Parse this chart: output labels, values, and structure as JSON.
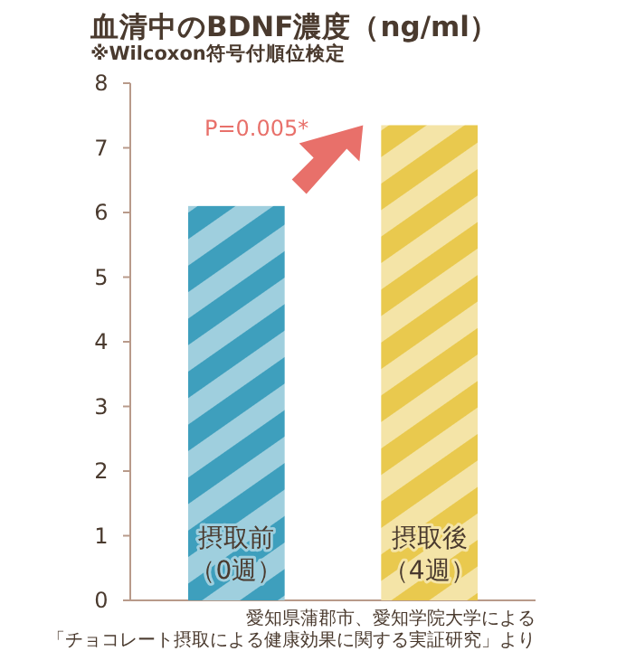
{
  "chart_data": {
    "type": "bar",
    "title": "血清中のBDNF濃度（ng/ml）",
    "subtitle": "※Wilcoxon符号付順位検定",
    "categories": [
      "摂取前（0週）",
      "摂取後（4週）"
    ],
    "values": [
      6.1,
      7.35
    ],
    "colors": [
      "#3e9fbd",
      "#e9c94e"
    ],
    "ylim": [
      0,
      8
    ],
    "yticks": [
      0,
      1,
      2,
      3,
      4,
      5,
      6,
      7,
      8
    ],
    "annotations": [
      "P=0.005*",
      "愛知県蒲郡市、愛知学院大学による「チョコレート摂取による健康効果に関する実証研究」より"
    ]
  }
}
